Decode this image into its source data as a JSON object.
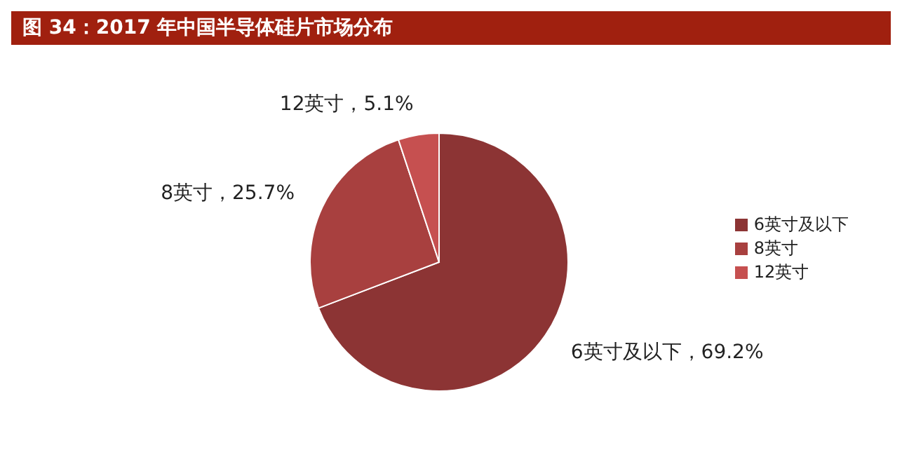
{
  "chart_data": {
    "type": "pie",
    "title": "图 34：2017 年中国半导体硅片市场分布",
    "categories": [
      "6英寸及以下",
      "8英寸",
      "12英寸"
    ],
    "values": [
      69.2,
      25.7,
      5.1
    ],
    "colors": [
      "#8c3434",
      "#a8403f",
      "#c65050"
    ],
    "value_labels": [
      "6英寸及以下，69.2%",
      "8英寸，25.7%",
      "12英寸，5.1%"
    ],
    "legend": "right"
  }
}
